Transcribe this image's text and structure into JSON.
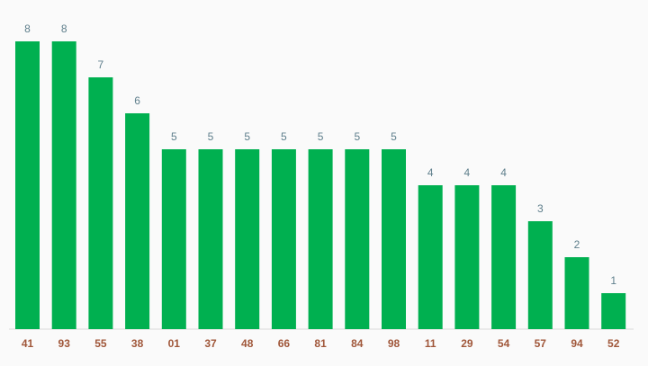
{
  "chart_data": {
    "type": "bar",
    "categories": [
      "41",
      "93",
      "55",
      "38",
      "01",
      "37",
      "48",
      "66",
      "81",
      "84",
      "98",
      "11",
      "29",
      "54",
      "57",
      "94",
      "52"
    ],
    "values": [
      8,
      8,
      7,
      6,
      5,
      5,
      5,
      5,
      5,
      5,
      5,
      4,
      4,
      4,
      3,
      2,
      1
    ],
    "color": "#00b050"
  }
}
